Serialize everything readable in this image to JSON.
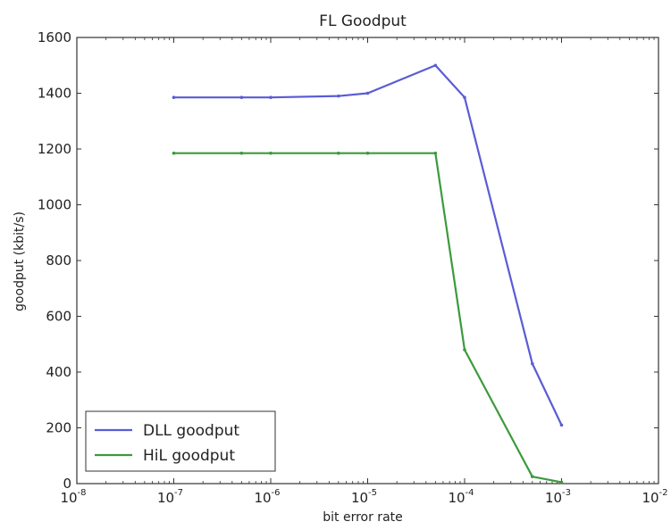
{
  "chart_data": {
    "type": "line",
    "title": "FL Goodput",
    "xlabel": "bit error rate",
    "ylabel": "goodput (kbit/s)",
    "xscale": "log",
    "xlim": [
      1e-08,
      0.01
    ],
    "ylim": [
      0,
      1600
    ],
    "x_ticks": [
      {
        "base": "10",
        "exp": "-8"
      },
      {
        "base": "10",
        "exp": "-7"
      },
      {
        "base": "10",
        "exp": "-6"
      },
      {
        "base": "10",
        "exp": "-5"
      },
      {
        "base": "10",
        "exp": "-4"
      },
      {
        "base": "10",
        "exp": "-3"
      },
      {
        "base": "10",
        "exp": "-2"
      }
    ],
    "y_ticks": [
      "0",
      "200",
      "400",
      "600",
      "800",
      "1000",
      "1200",
      "1400",
      "1600"
    ],
    "grid": false,
    "legend_position": "bottom-left",
    "series": [
      {
        "name": "DLL goodput",
        "color": "#5b5bd6",
        "x": [
          1e-07,
          5e-07,
          1e-06,
          5e-06,
          1e-05,
          5e-05,
          0.0001,
          0.0005,
          0.001
        ],
        "y": [
          1385,
          1385,
          1385,
          1390,
          1400,
          1500,
          1385,
          430,
          210
        ]
      },
      {
        "name": "HiL goodput",
        "color": "#3c9a3c",
        "x": [
          1e-07,
          5e-07,
          1e-06,
          5e-06,
          1e-05,
          5e-05,
          0.0001,
          0.0005,
          0.001
        ],
        "y": [
          1185,
          1185,
          1185,
          1185,
          1185,
          1185,
          480,
          25,
          5
        ]
      }
    ]
  }
}
